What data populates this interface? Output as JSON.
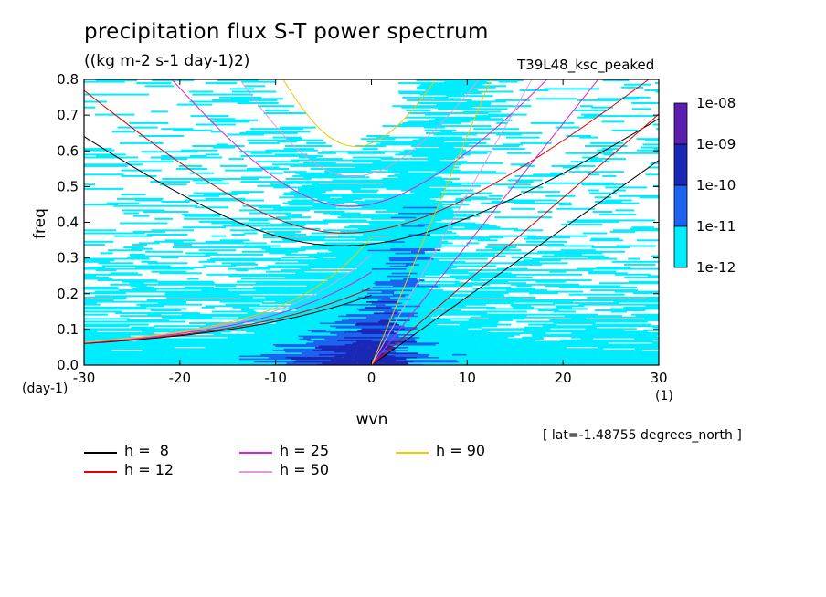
{
  "header": {
    "title": "precipitation flux S-T power spectrum",
    "units": "((kg m-2 s-1 day-1)2)",
    "run_name": "T39L48_ksc_peaked"
  },
  "footer": {
    "lat_note": "[ lat=-1.48755 degrees_north ]"
  },
  "chart_data": {
    "type": "heatmap",
    "title": "precipitation flux S-T power spectrum",
    "xlabel": "wvn",
    "ylabel": "freq",
    "x_unit": "(1)",
    "y_unit": "(day-1)",
    "xlim": [
      -30,
      30
    ],
    "ylim": [
      0,
      0.8
    ],
    "x_ticks": [
      -30,
      -20,
      -10,
      0,
      10,
      20,
      30
    ],
    "y_ticks": [
      0.0,
      0.1,
      0.2,
      0.3,
      0.4,
      0.5,
      0.6,
      0.7,
      0.8
    ],
    "x_tick_labels": [
      "-30",
      "-20",
      "-10",
      "0",
      "10",
      "20",
      "30"
    ],
    "y_tick_labels": [
      "0.0",
      "0.1",
      "0.2",
      "0.3",
      "0.4",
      "0.5",
      "0.6",
      "0.7",
      "0.8"
    ],
    "colorbar": {
      "levels": [
        "1e-08",
        "1e-09",
        "1e-10",
        "1e-11",
        "1e-12"
      ],
      "colors": [
        "#5a1fb0",
        "#1a28b8",
        "#1c64f0",
        "#00ecff"
      ]
    },
    "dispersion_curves": [
      {
        "label": "h =  8",
        "h": 8,
        "color": "#000000"
      },
      {
        "label": "h = 12",
        "h": 12,
        "color": "#e00000"
      },
      {
        "label": "h = 25",
        "h": 25,
        "color": "#e020d0"
      },
      {
        "label": "h = 50",
        "h": 50,
        "color": "#e09ae0"
      },
      {
        "label": "h = 90",
        "h": 90,
        "color": "#f0c800"
      }
    ]
  }
}
